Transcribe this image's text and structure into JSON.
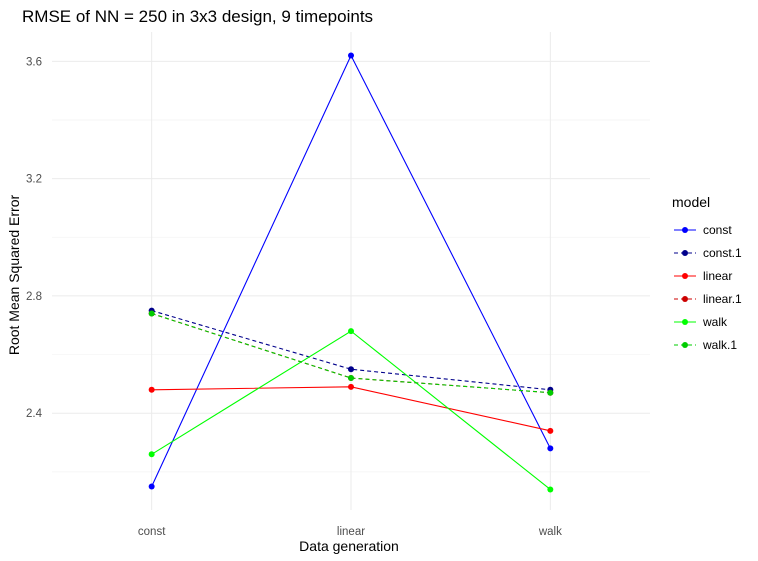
{
  "chart_data": {
    "type": "line",
    "title": "RMSE of NN =  250 in 3x3 design, 9 timepoints",
    "xlabel": "Data generation",
    "ylabel": "Root Mean Squared Error",
    "categories": [
      "const",
      "linear",
      "walk"
    ],
    "ylim": [
      2.07,
      3.7
    ],
    "y_ticks": [
      2.4,
      2.8,
      3.2,
      3.6
    ],
    "y_tick_labels": [
      "2.4",
      "2.8",
      "3.2",
      "3.6"
    ],
    "grid": true,
    "legend": {
      "title": "model",
      "placement": "right"
    },
    "series": [
      {
        "name": "const",
        "color": "#0000ff",
        "dash": "solid",
        "values": [
          2.15,
          3.62,
          2.28
        ]
      },
      {
        "name": "const.1",
        "color": "#00008b",
        "dash": "dashed",
        "values": [
          2.75,
          2.55,
          2.48
        ]
      },
      {
        "name": "linear",
        "color": "#ff0000",
        "dash": "solid",
        "values": [
          2.48,
          2.49,
          2.34
        ]
      },
      {
        "name": "linear.1",
        "color": "#cc0000",
        "dash": "dashed",
        "values": [
          2.74,
          2.52,
          2.47
        ]
      },
      {
        "name": "walk",
        "color": "#00ff00",
        "dash": "solid",
        "values": [
          2.26,
          2.68,
          2.14
        ]
      },
      {
        "name": "walk.1",
        "color": "#00cc00",
        "dash": "dashed",
        "values": [
          2.74,
          2.52,
          2.47
        ]
      }
    ]
  }
}
